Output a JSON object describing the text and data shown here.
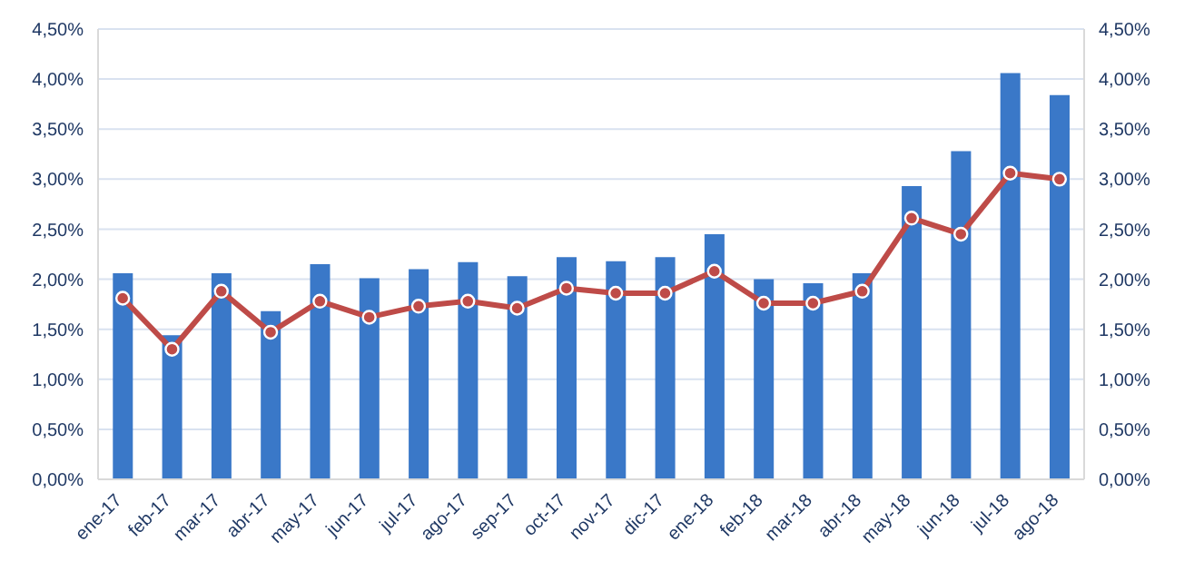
{
  "chart_data": {
    "type": "bar",
    "categories": [
      "ene-17",
      "feb-17",
      "mar-17",
      "abr-17",
      "may-17",
      "jun-17",
      "jul-17",
      "ago-17",
      "sep-17",
      "oct-17",
      "nov-17",
      "dic-17",
      "ene-18",
      "feb-18",
      "mar-18",
      "abr-18",
      "may-18",
      "jun-18",
      "jul-18",
      "ago-18"
    ],
    "series": [
      {
        "color": "#3a78c8",
        "values": [
          2.06,
          1.44,
          2.06,
          1.68,
          2.15,
          2.01,
          2.1,
          2.17,
          2.03,
          2.22,
          2.18,
          2.22,
          2.45,
          2.0,
          1.96,
          2.06,
          2.93,
          3.28,
          4.06,
          3.84
        ]
      },
      {
        "type": "line",
        "axis": "y2",
        "color": "#be4b48",
        "values": [
          1.81,
          1.3,
          1.88,
          1.47,
          1.78,
          1.62,
          1.73,
          1.78,
          1.71,
          1.91,
          1.86,
          1.86,
          2.08,
          1.76,
          1.76,
          1.88,
          2.61,
          2.45,
          3.06,
          3.0
        ]
      }
    ],
    "ylim": [
      0,
      4.5
    ],
    "yticks": [
      {
        "value": 0,
        "label": "0,00%"
      },
      {
        "value": 0.5,
        "label": "0,50%"
      },
      {
        "value": 1,
        "label": "1,00%"
      },
      {
        "value": 1.5,
        "label": "1,50%"
      },
      {
        "value": 2,
        "label": "2,00%"
      },
      {
        "value": 2.5,
        "label": "2,50%"
      },
      {
        "value": 3,
        "label": "3,00%"
      },
      {
        "value": 3.5,
        "label": "3,50%"
      },
      {
        "value": 4,
        "label": "4,00%"
      },
      {
        "value": 4.5,
        "label": "4,50%"
      }
    ],
    "y2lim": [
      0,
      4.5
    ],
    "y2ticks": [
      {
        "value": 0,
        "label": "0,00%"
      },
      {
        "value": 0.5,
        "label": "0,50%"
      },
      {
        "value": 1,
        "label": "1,00%"
      },
      {
        "value": 1.5,
        "label": "1,50%"
      },
      {
        "value": 2,
        "label": "2,00%"
      },
      {
        "value": 2.5,
        "label": "2,50%"
      },
      {
        "value": 3,
        "label": "3,00%"
      },
      {
        "value": 3.5,
        "label": "3,50%"
      },
      {
        "value": 4,
        "label": "4,00%"
      },
      {
        "value": 4.5,
        "label": "4,50%"
      }
    ],
    "grid": "y",
    "marker": "circle",
    "line_style": "solid",
    "legend": false
  }
}
